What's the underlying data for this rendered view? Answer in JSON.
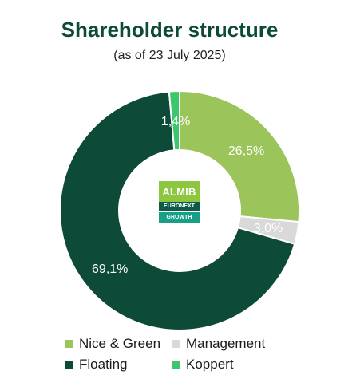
{
  "title": "Shareholder structure",
  "subtitle": "(as of 23 July 2025)",
  "logo": {
    "top": "ALMIB",
    "middle": "EURONEXT",
    "bottom": "GROWTH"
  },
  "chart_data": {
    "type": "pie",
    "style": "donut",
    "title": "Shareholder structure",
    "subtitle": "(as of 23 July 2025)",
    "legend_position": "bottom",
    "slices": [
      {
        "name": "Nice & Green",
        "value": 26.5,
        "label": "26,5%",
        "color": "#9bc45a"
      },
      {
        "name": "Management",
        "value": 3.0,
        "label": "3,0%",
        "color": "#d9d9d9"
      },
      {
        "name": "Floating",
        "value": 69.1,
        "label": "69,1%",
        "color": "#0d4a38"
      },
      {
        "name": "Koppert",
        "value": 1.4,
        "label": "1,4%",
        "color": "#3cc86a"
      }
    ]
  },
  "legend": [
    {
      "label": "Nice & Green",
      "color": "#9bc45a"
    },
    {
      "label": "Management",
      "color": "#d9d9d9"
    },
    {
      "label": "Floating",
      "color": "#0d4a38"
    },
    {
      "label": "Koppert",
      "color": "#3cc86a"
    }
  ]
}
